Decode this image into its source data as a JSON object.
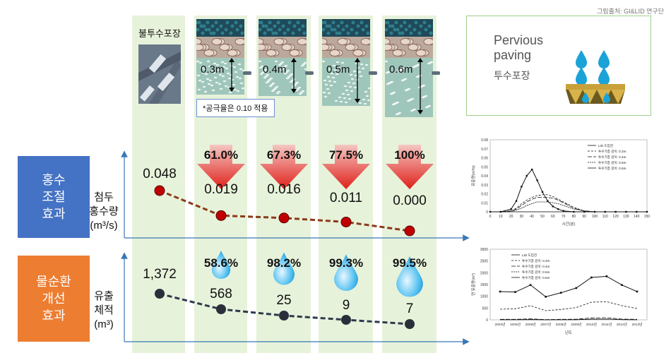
{
  "credit": "그림출처: GI&LID 연구단",
  "columns": [
    {
      "label": "불투수포장"
    },
    {
      "depth": "0.3m"
    },
    {
      "depth": "0.4m"
    },
    {
      "depth": "0.5m"
    },
    {
      "depth": "0.6m"
    }
  ],
  "note": "*공극율은 0.10 적용",
  "pervious_box": {
    "en": "Pervious\npaving",
    "ko": "투수포장"
  },
  "sections": {
    "flood": {
      "label": "홍수\n조절\n효과",
      "row_label": "첨두\n홍수량\n(m³/s)",
      "color": "#4472c4"
    },
    "water": {
      "label": "물순환\n개선\n효과",
      "row_label": "유출\n체적\n(m³)",
      "color": "#ed7d31"
    }
  },
  "chart_data": [
    {
      "type": "line",
      "name": "peak-flood",
      "categories": [
        "불투수포장",
        "0.3m",
        "0.4m",
        "0.5m",
        "0.6m"
      ],
      "values": [
        0.048,
        0.019,
        0.016,
        0.011,
        0.0
      ],
      "value_labels": [
        "0.048",
        "0.019",
        "0.016",
        "0.011",
        "0.000"
      ],
      "reduction_labels": [
        "",
        "61.0%",
        "67.3%",
        "77.5%",
        "100%"
      ],
      "ylim": [
        0,
        0.05
      ],
      "color": "#8b3a1a",
      "marker_color": "#c00000"
    },
    {
      "type": "line",
      "name": "runoff-volume",
      "categories": [
        "불투수포장",
        "0.3m",
        "0.4m",
        "0.5m",
        "0.6m"
      ],
      "values": [
        1372,
        568,
        25,
        9,
        7
      ],
      "value_labels": [
        "1,372",
        "568",
        "25",
        "9",
        "7"
      ],
      "reduction_labels": [
        "",
        "58.6%",
        "98.2%",
        "99.3%",
        "99.5%"
      ],
      "color": "#2e3a4e",
      "marker_color": "#2a2f3a"
    },
    {
      "type": "line",
      "name": "hydrograph",
      "xlabel": "시간(분)",
      "ylabel": "유출량(m³/s)",
      "xlim": [
        0,
        150
      ],
      "ylim": [
        0,
        0.08
      ],
      "x_ticks": [
        0,
        10,
        20,
        30,
        40,
        50,
        60,
        70,
        80,
        90,
        100,
        110,
        120,
        130,
        140,
        150
      ],
      "y_ticks": [
        0,
        0.01,
        0.02,
        0.03,
        0.04,
        0.05,
        0.06,
        0.07,
        0.08
      ],
      "legend": [
        "LID 도입전",
        "투수기층 깊이: 0.3m",
        "투수기층 깊이: 0.4m",
        "투수기층 깊이: 0.5m",
        "투수기층 깊이: 0.6m"
      ],
      "x": [
        0,
        10,
        20,
        25,
        30,
        35,
        40,
        45,
        50,
        55,
        60,
        65,
        70,
        80,
        90,
        100,
        110,
        120,
        130,
        140,
        150
      ],
      "series": [
        {
          "values": [
            0,
            0,
            0.003,
            0.012,
            0.028,
            0.04,
            0.047,
            0.035,
            0.022,
            0.012,
            0.006,
            0.003,
            0.001,
            0,
            0,
            0,
            0,
            0,
            0,
            0,
            0
          ]
        },
        {
          "values": [
            0,
            0,
            0.001,
            0.004,
            0.009,
            0.013,
            0.016,
            0.018,
            0.019,
            0.019,
            0.017,
            0.014,
            0.011,
            0.005,
            0.001,
            0,
            0,
            0,
            0,
            0,
            0
          ]
        },
        {
          "values": [
            0,
            0,
            0.001,
            0.003,
            0.007,
            0.011,
            0.014,
            0.016,
            0.016,
            0.016,
            0.015,
            0.013,
            0.01,
            0.004,
            0.001,
            0,
            0,
            0,
            0,
            0,
            0
          ]
        },
        {
          "values": [
            0,
            0,
            0,
            0.002,
            0.004,
            0.007,
            0.009,
            0.011,
            0.011,
            0.011,
            0.01,
            0.009,
            0.007,
            0.003,
            0.001,
            0,
            0,
            0,
            0,
            0,
            0
          ]
        },
        {
          "values": [
            0,
            0,
            0,
            0,
            0,
            0,
            0,
            0,
            0,
            0,
            0,
            0,
            0,
            0,
            0,
            0,
            0,
            0,
            0,
            0,
            0
          ]
        }
      ]
    },
    {
      "type": "line",
      "name": "annual-runoff",
      "xlabel": "년도",
      "ylabel": "연 유출량(m³)",
      "ylim": [
        0,
        3000
      ],
      "y_ticks": [
        0,
        500,
        1000,
        1500,
        2000,
        2500,
        3000
      ],
      "categories": [
        "2004년",
        "2005년",
        "2006년",
        "2007년",
        "2008년",
        "2009년",
        "2010년",
        "2011년",
        "2012년",
        "2013년"
      ],
      "legend": [
        "LID 도입전",
        "투수기층 깊이: 0.3m",
        "투수기층 깊이: 0.4m",
        "투수기층 깊이: 0.5m",
        "투수기층 깊이: 0.6m"
      ],
      "series": [
        {
          "values": [
            1200,
            1180,
            1480,
            980,
            1150,
            1350,
            1800,
            1850,
            1480,
            1200
          ]
        },
        {
          "values": [
            450,
            470,
            600,
            390,
            440,
            520,
            750,
            770,
            600,
            480
          ]
        },
        {
          "values": [
            20,
            20,
            40,
            10,
            20,
            25,
            80,
            90,
            30,
            20
          ]
        },
        {
          "values": [
            5,
            5,
            15,
            3,
            5,
            8,
            30,
            35,
            10,
            5
          ]
        },
        {
          "values": [
            3,
            3,
            10,
            2,
            3,
            5,
            25,
            30,
            8,
            3
          ]
        }
      ]
    }
  ]
}
